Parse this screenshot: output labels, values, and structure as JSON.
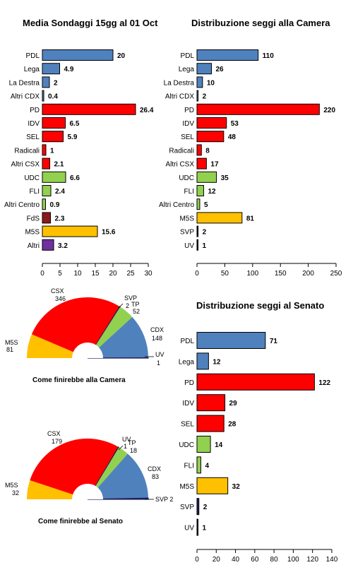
{
  "chart_data": [
    {
      "type": "bar",
      "orientation": "horizontal",
      "title": "Media Sondaggi 15gg al 01 Oct",
      "categories": [
        "PDL",
        "Lega",
        "La Destra",
        "Altri CDX",
        "PD",
        "IDV",
        "SEL",
        "Radicali",
        "Altri CSX",
        "UDC",
        "FLI",
        "Altri Centro",
        "FdS",
        "M5S",
        "Altri"
      ],
      "values": [
        20,
        4.9,
        2,
        0.4,
        26.4,
        6.5,
        5.9,
        1,
        2.1,
        6.6,
        2.4,
        0.9,
        2.3,
        15.6,
        3.2
      ],
      "value_labels": [
        "20",
        "4.9",
        "2",
        "0.4",
        "26.4",
        "6.5",
        "5.9",
        "1",
        "2.1",
        "6.6",
        "2.4",
        "0.9",
        "2.3",
        "15.6",
        "3.2"
      ],
      "colors": [
        "#4f81bd",
        "#4f81bd",
        "#4f81bd",
        "#4f81bd",
        "#ff0000",
        "#ff0000",
        "#ff0000",
        "#ff0000",
        "#ff0000",
        "#92d050",
        "#92d050",
        "#92d050",
        "#8b1a1a",
        "#ffc000",
        "#7030a0"
      ],
      "xlim": [
        0,
        30
      ],
      "xticks": [
        "0",
        "5",
        "10",
        "15",
        "20",
        "25",
        "30"
      ],
      "xtick_values": [
        0,
        5,
        10,
        15,
        20,
        25,
        30
      ]
    },
    {
      "type": "bar",
      "orientation": "horizontal",
      "title": "Distribuzione seggi alla Camera",
      "categories": [
        "PDL",
        "Lega",
        "La Destra",
        "Altri CDX",
        "PD",
        "IDV",
        "SEL",
        "Radicali",
        "Altri CSX",
        "UDC",
        "FLI",
        "Altri Centro",
        "M5S",
        "SVP",
        "UV"
      ],
      "values": [
        110,
        26,
        10,
        2,
        220,
        53,
        48,
        8,
        17,
        35,
        12,
        5,
        81,
        2,
        1
      ],
      "value_labels": [
        "110",
        "26",
        "10",
        "2",
        "220",
        "53",
        "48",
        "8",
        "17",
        "35",
        "12",
        "5",
        "81",
        "2",
        "1"
      ],
      "colors": [
        "#4f81bd",
        "#4f81bd",
        "#4f81bd",
        "#4f81bd",
        "#ff0000",
        "#ff0000",
        "#ff0000",
        "#ff0000",
        "#ff0000",
        "#92d050",
        "#92d050",
        "#92d050",
        "#ffc000",
        "#1f1f5f",
        "#1f1f5f"
      ],
      "xlim": [
        0,
        250
      ],
      "xticks": [
        "0",
        "50",
        "100",
        "150",
        "200",
        "250"
      ],
      "xtick_values": [
        0,
        50,
        100,
        150,
        200,
        250
      ]
    },
    {
      "type": "pie",
      "subtype": "semicircle",
      "caption": "Come finirebbe alla Camera",
      "slices": [
        {
          "name": "M5S",
          "value": 81,
          "color": "#ffc000"
        },
        {
          "name": "CSX",
          "value": 346,
          "color": "#ff0000"
        },
        {
          "name": "SVP",
          "value": 2,
          "color": "#1f1f5f"
        },
        {
          "name": "TP",
          "value": 52,
          "color": "#92d050"
        },
        {
          "name": "CDX",
          "value": 148,
          "color": "#4f81bd"
        },
        {
          "name": "UV",
          "value": 1,
          "color": "#1f1f5f"
        }
      ],
      "labels": [
        "M5S",
        "81",
        "CSX",
        "346",
        "SVP",
        "2",
        "TP",
        "52",
        "CDX",
        "148",
        "UV",
        "1"
      ]
    },
    {
      "type": "bar",
      "orientation": "horizontal",
      "title": "Distribuzione seggi al Senato",
      "categories": [
        "PDL",
        "Lega",
        "PD",
        "IDV",
        "SEL",
        "UDC",
        "FLI",
        "M5S",
        "SVP",
        "UV"
      ],
      "values": [
        71,
        12,
        122,
        29,
        28,
        14,
        4,
        32,
        2,
        1
      ],
      "value_labels": [
        "71",
        "12",
        "122",
        "29",
        "28",
        "14",
        "4",
        "32",
        "2",
        "1"
      ],
      "colors": [
        "#4f81bd",
        "#4f81bd",
        "#ff0000",
        "#ff0000",
        "#ff0000",
        "#92d050",
        "#92d050",
        "#ffc000",
        "#1f1f5f",
        "#1f1f5f"
      ],
      "xlim": [
        0,
        140
      ],
      "xticks": [
        "0",
        "20",
        "40",
        "60",
        "80",
        "100",
        "120",
        "140"
      ],
      "xtick_values": [
        0,
        20,
        40,
        60,
        80,
        100,
        120,
        140
      ]
    },
    {
      "type": "pie",
      "subtype": "semicircle",
      "caption": "Come finirebbe al Senato",
      "slices": [
        {
          "name": "M5S",
          "value": 32,
          "color": "#ffc000"
        },
        {
          "name": "CSX",
          "value": 179,
          "color": "#ff0000"
        },
        {
          "name": "UV",
          "value": 1,
          "color": "#1f1f5f"
        },
        {
          "name": "TP",
          "value": 18,
          "color": "#92d050"
        },
        {
          "name": "CDX",
          "value": 83,
          "color": "#4f81bd"
        },
        {
          "name": "SVP",
          "value": 2,
          "color": "#1f1f5f"
        }
      ],
      "labels": [
        "M5S",
        "32",
        "CSX",
        "179",
        "UV",
        "1",
        "TP",
        "18",
        "CDX",
        "83",
        "SVP 2"
      ]
    }
  ]
}
